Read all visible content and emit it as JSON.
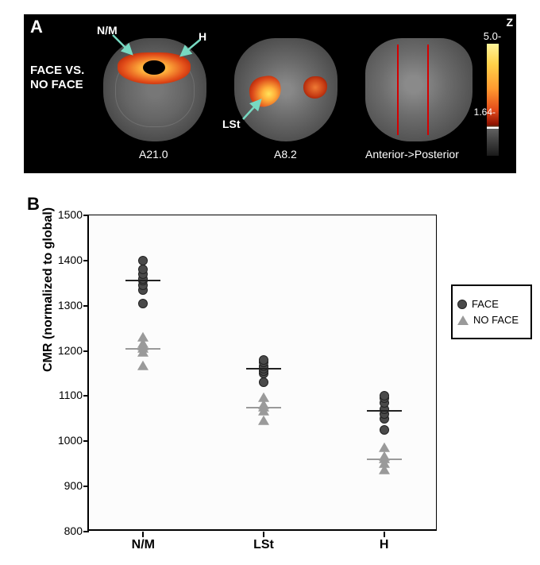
{
  "panelA": {
    "label": "A",
    "condition": "FACE VS.\nNO FACE",
    "regions": {
      "nm": "N/M",
      "h": "H",
      "lst": "LSt"
    },
    "slice_captions": {
      "s1": "A21.0",
      "s2": "A8.2",
      "s3": "Anterior->Posterior"
    },
    "colorbar": {
      "z": "Z",
      "top": "5.0-",
      "mid": "1.64-"
    },
    "arrow_color": "#77d9c2",
    "background": "#000000"
  },
  "panelB": {
    "label": "B",
    "chart": {
      "type": "scatter",
      "ylabel": "CMR (normalized to global)",
      "ylim": [
        800,
        1500
      ],
      "ytick_step": 100,
      "yticks": [
        800,
        900,
        1000,
        1100,
        1200,
        1300,
        1400,
        1500
      ],
      "categories": [
        "N/M",
        "LSt",
        "H"
      ],
      "face_color": "#4a4a4a",
      "noface_color": "#9a9a9a",
      "background_color": "#fcfcfc",
      "marker_size": 12,
      "mean_line_width": 44,
      "data": {
        "N/M": {
          "face": [
            1305,
            1335,
            1345,
            1355,
            1360,
            1370,
            1380,
            1400
          ],
          "noface": [
            1165,
            1195,
            1205,
            1210,
            1215,
            1230
          ]
        },
        "LSt": {
          "face": [
            1130,
            1150,
            1155,
            1160,
            1165,
            1175,
            1180
          ],
          "noface": [
            1045,
            1065,
            1075,
            1080,
            1095
          ]
        },
        "H": {
          "face": [
            1025,
            1050,
            1060,
            1070,
            1085,
            1095,
            1100
          ],
          "noface": [
            935,
            950,
            960,
            965,
            985
          ]
        }
      },
      "means": {
        "N/M": {
          "face": 1355,
          "noface": 1205
        },
        "LSt": {
          "face": 1160,
          "noface": 1075
        },
        "H": {
          "face": 1068,
          "noface": 960
        }
      }
    },
    "legend": {
      "face": "FACE",
      "noface": "NO FACE"
    }
  }
}
